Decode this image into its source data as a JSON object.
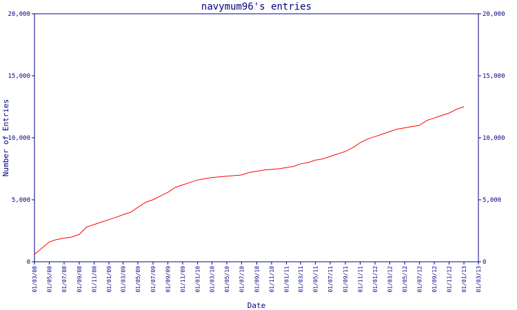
{
  "chart_data": {
    "type": "line",
    "title": "navymum96's entries",
    "xlabel": "Date",
    "ylabel": "Number of Entries",
    "ylim": [
      0,
      20000
    ],
    "y_ticks": [
      0,
      5000,
      10000,
      15000,
      20000
    ],
    "y_tick_labels": [
      "0",
      "5,000",
      "10,000",
      "15,000",
      "20,000"
    ],
    "x_ticks": [
      "01/03/08",
      "01/05/08",
      "01/07/08",
      "01/09/08",
      "01/11/08",
      "01/01/09",
      "01/03/09",
      "01/05/09",
      "01/07/09",
      "01/09/09",
      "01/11/09",
      "01/01/10",
      "01/03/10",
      "01/05/10",
      "01/07/10",
      "01/09/10",
      "01/11/10",
      "01/01/11",
      "01/03/11",
      "01/05/11",
      "01/07/11",
      "01/09/11",
      "01/11/11",
      "01/01/12",
      "01/03/12",
      "01/05/12",
      "01/07/12",
      "01/09/12",
      "01/11/12",
      "01/01/13",
      "01/03/13"
    ],
    "grid": false,
    "series": [
      {
        "color": "#ff0000",
        "x": [
          "01/03/08",
          "01/04/08",
          "01/05/08",
          "01/06/08",
          "01/07/08",
          "01/08/08",
          "01/09/08",
          "01/10/08",
          "01/11/08",
          "01/12/08",
          "01/01/09",
          "01/02/09",
          "01/03/09",
          "01/04/09",
          "01/05/09",
          "01/06/09",
          "01/07/09",
          "01/08/09",
          "01/09/09",
          "01/10/09",
          "01/11/09",
          "01/12/09",
          "01/01/10",
          "01/02/10",
          "01/03/10",
          "01/04/10",
          "01/05/10",
          "01/06/10",
          "01/07/10",
          "01/08/10",
          "01/09/10",
          "01/10/10",
          "01/11/10",
          "01/12/10",
          "01/01/11",
          "01/02/11",
          "01/03/11",
          "01/04/11",
          "01/05/11",
          "01/06/11",
          "01/07/11",
          "01/08/11",
          "01/09/11",
          "01/10/11",
          "01/11/11",
          "01/12/11",
          "01/01/12",
          "01/02/12",
          "01/03/12",
          "01/04/12",
          "01/05/12",
          "01/06/12",
          "01/07/12",
          "01/08/12",
          "01/09/12",
          "01/10/12",
          "01/11/12",
          "01/12/12",
          "01/01/13"
        ],
        "values": [
          600,
          1100,
          1600,
          1800,
          1900,
          2000,
          2200,
          2800,
          3000,
          3200,
          3400,
          3600,
          3800,
          4000,
          4400,
          4800,
          5000,
          5300,
          5600,
          6000,
          6200,
          6400,
          6600,
          6700,
          6800,
          6850,
          6900,
          6950,
          7000,
          7200,
          7300,
          7400,
          7450,
          7500,
          7600,
          7700,
          7900,
          8000,
          8200,
          8300,
          8500,
          8700,
          8900,
          9200,
          9600,
          9900,
          10100,
          10300,
          10500,
          10700,
          10800,
          10900,
          11000,
          11400,
          11600,
          11800,
          12000,
          12300,
          12500
        ]
      }
    ]
  }
}
